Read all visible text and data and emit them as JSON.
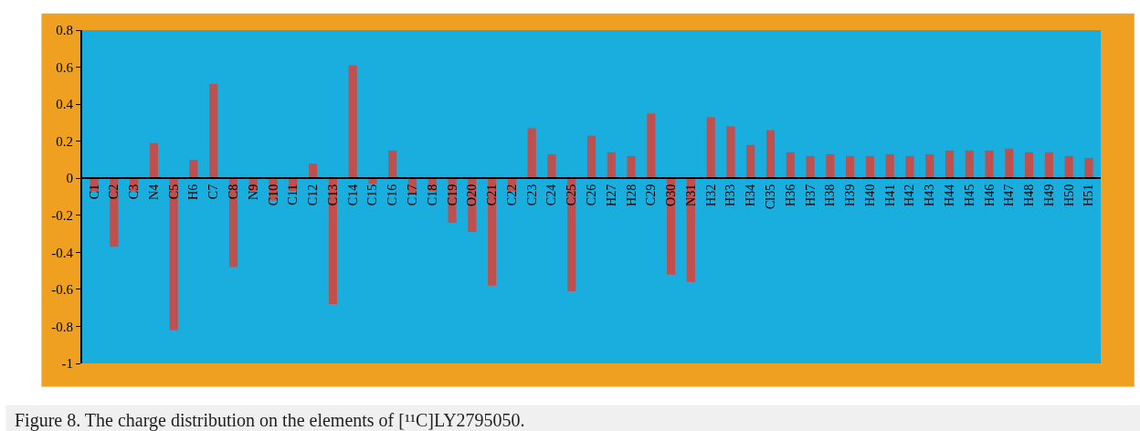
{
  "chart_data": {
    "type": "bar",
    "title": "Figure 8. The charge distribution on the elements of [¹¹C]LY2795050.",
    "categories": [
      "C1",
      "C2",
      "C3",
      "N4",
      "C5",
      "H6",
      "C7",
      "C8",
      "N9",
      "C10",
      "C11",
      "C12",
      "C13",
      "C14",
      "C15",
      "C16",
      "C17",
      "C18",
      "C19",
      "O20",
      "C21",
      "C22",
      "C23",
      "C24",
      "C25",
      "C26",
      "H27",
      "H28",
      "C29",
      "O30",
      "N31",
      "H32",
      "H33",
      "H34",
      "Cl35",
      "H36",
      "H37",
      "H38",
      "H39",
      "H40",
      "H41",
      "H42",
      "H43",
      "H44",
      "H45",
      "H46",
      "H47",
      "H48",
      "H49",
      "H50",
      "H51"
    ],
    "values": [
      -0.07,
      -0.37,
      -0.07,
      0.19,
      -0.82,
      0.1,
      0.51,
      -0.48,
      -0.07,
      -0.12,
      -0.07,
      0.08,
      -0.68,
      0.61,
      -0.03,
      0.15,
      -0.08,
      -0.07,
      -0.24,
      -0.29,
      -0.58,
      -0.07,
      0.27,
      0.13,
      -0.61,
      0.23,
      0.14,
      0.12,
      0.35,
      -0.52,
      -0.56,
      0.33,
      0.28,
      0.18,
      0.26,
      0.14,
      0.12,
      0.13,
      0.12,
      0.12,
      0.13,
      0.12,
      0.13,
      0.15,
      0.15,
      0.15,
      0.16,
      0.14,
      0.14,
      0.12,
      0.11
    ],
    "color": "#c0504d",
    "ylim": [
      -1,
      0.8
    ],
    "yticks": [
      {
        "value": -1,
        "label": "-1"
      },
      -0.8,
      -0.6,
      -0.4,
      -0.2,
      0,
      0.2,
      0.4,
      0.6,
      0.8
    ],
    "grid": false,
    "legend": false
  }
}
